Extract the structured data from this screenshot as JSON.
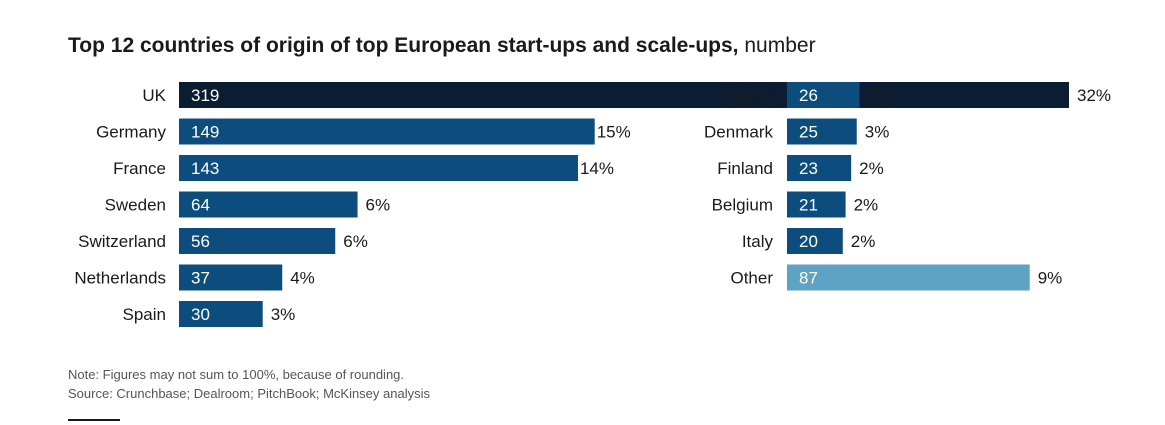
{
  "title": {
    "bold": "Top 12 countries of origin of top European start-ups and scale-ups,",
    "unit": "number"
  },
  "notes": {
    "note": "Note: Figures may not sum to 100%, because of rounding.",
    "source": "Source: Crunchbase; Dealroom; PitchBook; McKinsey analysis"
  },
  "colors": {
    "uk": "#0b1d33",
    "primary": "#0d4d7d",
    "other": "#5ea3c4",
    "value_text": "#ffffff",
    "label_text": "#1a1a1a"
  },
  "chart_data": {
    "type": "bar",
    "orientation": "horizontal",
    "title": "Top 12 countries of origin of top European start-ups and scale-ups, number",
    "columns": [
      {
        "column": "left",
        "bars": [
          {
            "label": "UK",
            "value": 319,
            "share": "32%",
            "highlight": true
          },
          {
            "label": "Germany",
            "value": 149,
            "share": "15%"
          },
          {
            "label": "France",
            "value": 143,
            "share": "14%"
          },
          {
            "label": "Sweden",
            "value": 64,
            "share": "6%"
          },
          {
            "label": "Switzerland",
            "value": 56,
            "share": "6%"
          },
          {
            "label": "Netherlands",
            "value": 37,
            "share": "4%"
          },
          {
            "label": "Spain",
            "value": 30,
            "share": "3%"
          }
        ]
      },
      {
        "column": "right",
        "bars": [
          {
            "label": "Ireland",
            "value": 26,
            "share": "3%"
          },
          {
            "label": "Denmark",
            "value": 25,
            "share": "3%"
          },
          {
            "label": "Finland",
            "value": 23,
            "share": "2%"
          },
          {
            "label": "Belgium",
            "value": 21,
            "share": "2%"
          },
          {
            "label": "Italy",
            "value": 20,
            "share": "2%"
          },
          {
            "label": "Other",
            "value": 87,
            "share": "9%",
            "muted": true
          }
        ]
      }
    ],
    "grid": false,
    "legend": "none"
  }
}
